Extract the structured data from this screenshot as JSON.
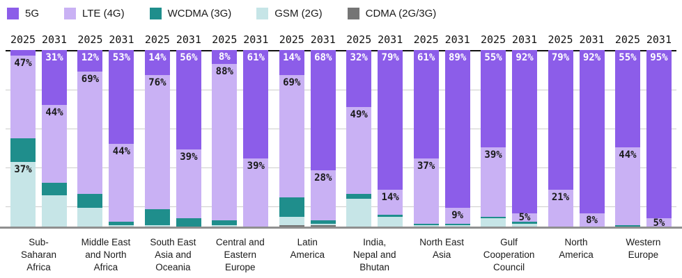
{
  "legend": {
    "items": [
      {
        "label": "5G",
        "color": "#8c5de9"
      },
      {
        "label": "LTE (4G)",
        "color": "#c9b1f4"
      },
      {
        "label": "WCDMA (3G)",
        "color": "#1f8e8c"
      },
      {
        "label": "GSM (2G)",
        "color": "#c6e5e7"
      },
      {
        "label": "CDMA (2G/3G)",
        "color": "#757575"
      }
    ]
  },
  "colors": {
    "label_on_5g": "#ffffff",
    "label_dark": "#1a1a1a",
    "gridline": "#cccccc",
    "axis_top": "#101010",
    "axis_bottom": "#8f8f8f"
  },
  "chart_data": {
    "type": "bar",
    "stacked": true,
    "unit": "percent",
    "ylim": [
      0,
      100
    ],
    "grid": "horizontal",
    "gridline_positions_pct_from_top": [
      21.6,
      43.5,
      65.5,
      87.5
    ],
    "legend_position": "top-left",
    "series_names": [
      "5G",
      "LTE (4G)",
      "WCDMA (3G)",
      "GSM (2G)",
      "CDMA (2G/3G)"
    ],
    "years": [
      "2025",
      "2031"
    ],
    "groups": [
      {
        "region": "Sub-Saharan Africa",
        "region_lines": [
          "Sub-",
          "Saharan",
          "Africa"
        ],
        "bars": [
          {
            "year": "2025",
            "values": [
              3,
              47,
              13,
              37,
              0
            ],
            "labels": [
              null,
              "47%",
              null,
              "37%",
              null
            ]
          },
          {
            "year": "2031",
            "values": [
              31,
              44,
              7,
              18,
              0
            ],
            "labels": [
              "31%",
              "44%",
              null,
              null,
              null
            ]
          }
        ]
      },
      {
        "region": "Middle East and North Africa",
        "region_lines": [
          "Middle East",
          "and North",
          "Africa"
        ],
        "bars": [
          {
            "year": "2025",
            "values": [
              12,
              69,
              8,
              11,
              0
            ],
            "labels": [
              "12%",
              "69%",
              null,
              null,
              null
            ]
          },
          {
            "year": "2031",
            "values": [
              53,
              44,
              2,
              1,
              0
            ],
            "labels": [
              "53%",
              "44%",
              null,
              null,
              null
            ]
          }
        ]
      },
      {
        "region": "South East Asia and Oceania",
        "region_lines": [
          "South East",
          "Asia and",
          "Oceania"
        ],
        "bars": [
          {
            "year": "2025",
            "values": [
              14,
              76,
              9,
              1,
              0
            ],
            "labels": [
              "14%",
              "76%",
              null,
              null,
              null
            ]
          },
          {
            "year": "2031",
            "values": [
              56,
              39,
              5,
              0,
              0
            ],
            "labels": [
              "56%",
              "39%",
              null,
              null,
              null
            ]
          }
        ]
      },
      {
        "region": "Central and Eastern Europe",
        "region_lines": [
          "Central and",
          "Eastern",
          "Europe"
        ],
        "bars": [
          {
            "year": "2025",
            "values": [
              8,
              88,
              3,
              1,
              0
            ],
            "labels": [
              "8%",
              "88%",
              null,
              null,
              null
            ]
          },
          {
            "year": "2031",
            "values": [
              61,
              39,
              0,
              0,
              0
            ],
            "labels": [
              "61%",
              "39%",
              null,
              null,
              null
            ]
          }
        ]
      },
      {
        "region": "Latin America",
        "region_lines": [
          "Latin",
          "America"
        ],
        "bars": [
          {
            "year": "2025",
            "values": [
              14,
              69,
              11,
              5,
              1
            ],
            "labels": [
              "14%",
              "69%",
              null,
              null,
              null
            ]
          },
          {
            "year": "2031",
            "values": [
              68,
              28,
              2,
              1,
              1
            ],
            "labels": [
              "68%",
              "28%",
              null,
              null,
              null
            ]
          }
        ]
      },
      {
        "region": "India, Nepal and Bhutan",
        "region_lines": [
          "India,",
          "Nepal and",
          "Bhutan"
        ],
        "bars": [
          {
            "year": "2025",
            "values": [
              32,
              49,
              3,
              16,
              0
            ],
            "labels": [
              "32%",
              "49%",
              null,
              null,
              null
            ]
          },
          {
            "year": "2031",
            "values": [
              79,
              14,
              1,
              6,
              0
            ],
            "labels": [
              "79%",
              "14%",
              null,
              null,
              null
            ]
          }
        ]
      },
      {
        "region": "North East Asia",
        "region_lines": [
          "North East",
          "Asia"
        ],
        "bars": [
          {
            "year": "2025",
            "values": [
              61,
              37,
              1,
              0.5,
              0.5
            ],
            "labels": [
              "61%",
              "37%",
              null,
              null,
              null
            ]
          },
          {
            "year": "2031",
            "values": [
              89,
              9,
              1,
              1,
              0
            ],
            "labels": [
              "89%",
              "9%",
              null,
              null,
              null
            ]
          }
        ]
      },
      {
        "region": "Gulf Cooperation Council",
        "region_lines": [
          "Gulf",
          "Cooperation",
          "Council"
        ],
        "bars": [
          {
            "year": "2025",
            "values": [
              55,
              39,
              1,
              5,
              0
            ],
            "labels": [
              "55%",
              "39%",
              null,
              null,
              null
            ]
          },
          {
            "year": "2031",
            "values": [
              92,
              5,
              1,
              2,
              0
            ],
            "labels": [
              "92%",
              "5%",
              null,
              null,
              null
            ]
          }
        ]
      },
      {
        "region": "North America",
        "region_lines": [
          "North",
          "America"
        ],
        "bars": [
          {
            "year": "2025",
            "values": [
              79,
              21,
              0,
              0,
              0
            ],
            "labels": [
              "79%",
              "21%",
              null,
              null,
              null
            ]
          },
          {
            "year": "2031",
            "values": [
              92,
              8,
              0,
              0,
              0
            ],
            "labels": [
              "92%",
              "8%",
              null,
              null,
              null
            ]
          }
        ]
      },
      {
        "region": "Western Europe",
        "region_lines": [
          "Western",
          "Europe"
        ],
        "bars": [
          {
            "year": "2025",
            "values": [
              55,
              44,
              1,
              0,
              0
            ],
            "labels": [
              "55%",
              "44%",
              null,
              null,
              null
            ]
          },
          {
            "year": "2031",
            "values": [
              95,
              5,
              0,
              0,
              0
            ],
            "labels": [
              "95%",
              "5%",
              null,
              null,
              null
            ]
          }
        ]
      }
    ]
  }
}
